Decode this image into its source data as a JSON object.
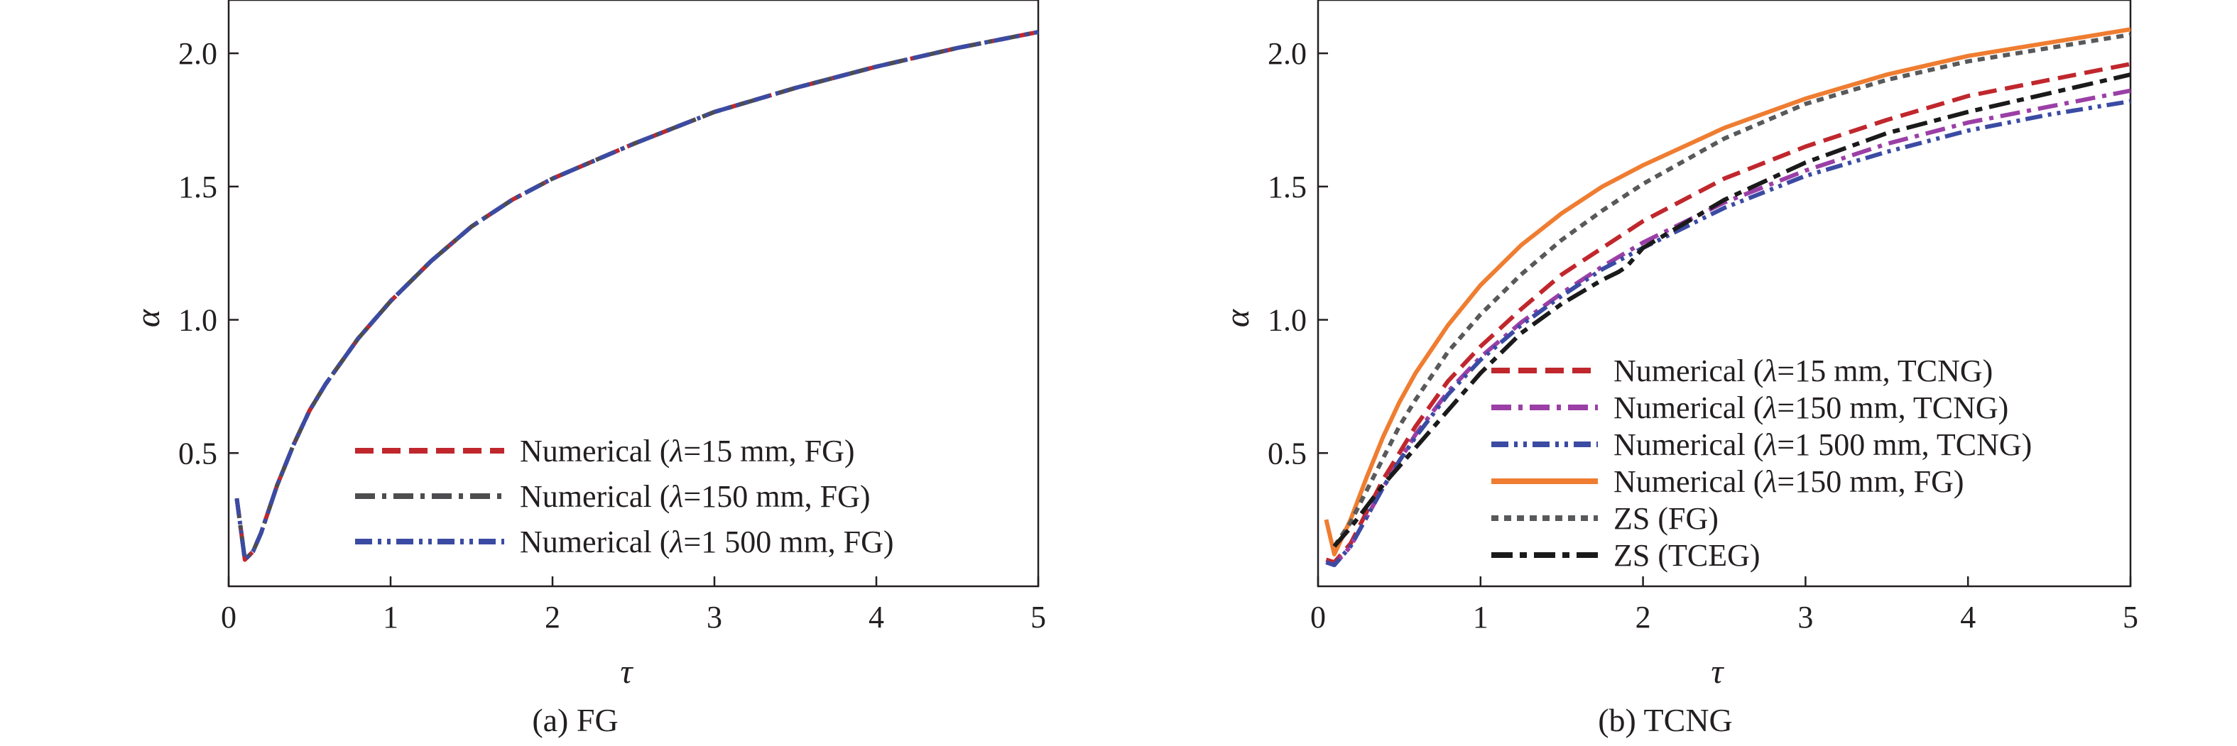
{
  "chart_data": [
    {
      "type": "line",
      "caption": "(a) FG",
      "xlabel": "τ",
      "ylabel": "α",
      "xlim": [
        0,
        5
      ],
      "ylim": [
        0,
        2.2
      ],
      "x_ticks": [
        "0",
        "1",
        "2",
        "3",
        "4",
        "5"
      ],
      "y_ticks": [
        "0.5",
        "1.0",
        "1.5",
        "2.0"
      ],
      "legend_position": "bottom-right",
      "series": [
        {
          "name": "Numerical (λ=15 mm, FG)",
          "color": "#c0272d",
          "style": "dashed",
          "x": [
            0.05,
            0.1,
            0.15,
            0.2,
            0.3,
            0.4,
            0.5,
            0.6,
            0.8,
            1.0,
            1.25,
            1.5,
            1.75,
            2.0,
            2.5,
            3.0,
            3.5,
            4.0,
            4.5,
            5.0
          ],
          "y": [
            0.33,
            0.1,
            0.13,
            0.2,
            0.38,
            0.53,
            0.66,
            0.76,
            0.93,
            1.07,
            1.22,
            1.35,
            1.45,
            1.53,
            1.66,
            1.78,
            1.87,
            1.95,
            2.02,
            2.08
          ]
        },
        {
          "name": "Numerical (λ=150 mm, FG)",
          "color": "#4d4d4f",
          "style": "dashdot",
          "x": [
            0.05,
            0.1,
            0.15,
            0.2,
            0.3,
            0.4,
            0.5,
            0.6,
            0.8,
            1.0,
            1.25,
            1.5,
            1.75,
            2.0,
            2.5,
            3.0,
            3.5,
            4.0,
            4.5,
            5.0
          ],
          "y": [
            0.33,
            0.1,
            0.13,
            0.2,
            0.38,
            0.53,
            0.66,
            0.76,
            0.93,
            1.07,
            1.22,
            1.35,
            1.45,
            1.53,
            1.66,
            1.78,
            1.87,
            1.95,
            2.02,
            2.08
          ]
        },
        {
          "name": "Numerical (λ=1 500 mm, FG)",
          "color": "#3b4ba3",
          "style": "dashdotdot",
          "x": [
            0.05,
            0.1,
            0.15,
            0.2,
            0.3,
            0.4,
            0.5,
            0.6,
            0.8,
            1.0,
            1.25,
            1.5,
            1.75,
            2.0,
            2.5,
            3.0,
            3.5,
            4.0,
            4.5,
            5.0
          ],
          "y": [
            0.33,
            0.1,
            0.13,
            0.2,
            0.38,
            0.53,
            0.66,
            0.76,
            0.93,
            1.07,
            1.22,
            1.35,
            1.45,
            1.53,
            1.66,
            1.78,
            1.87,
            1.95,
            2.02,
            2.08
          ]
        }
      ]
    },
    {
      "type": "line",
      "caption": "(b) TCNG",
      "xlabel": "τ",
      "ylabel": "α",
      "xlim": [
        0,
        5
      ],
      "ylim": [
        0,
        2.2
      ],
      "x_ticks": [
        "0",
        "1",
        "2",
        "3",
        "4",
        "5"
      ],
      "y_ticks": [
        "0.5",
        "1.0",
        "1.5",
        "2.0"
      ],
      "legend_position": "bottom-center",
      "series": [
        {
          "name": "Numerical (λ=15 mm, TCNG)",
          "color": "#c0272d",
          "style": "dashed",
          "x": [
            0.05,
            0.1,
            0.2,
            0.3,
            0.4,
            0.5,
            0.6,
            0.8,
            1.0,
            1.25,
            1.5,
            1.75,
            2.0,
            2.5,
            3.0,
            3.5,
            4.0,
            4.5,
            5.0
          ],
          "y": [
            0.1,
            0.09,
            0.16,
            0.28,
            0.4,
            0.5,
            0.6,
            0.77,
            0.9,
            1.04,
            1.17,
            1.27,
            1.37,
            1.53,
            1.65,
            1.75,
            1.84,
            1.9,
            1.96
          ]
        },
        {
          "name": "Numerical (λ=150 mm, TCNG)",
          "color": "#9b3fa6",
          "style": "dashdot",
          "x": [
            0.05,
            0.1,
            0.2,
            0.3,
            0.4,
            0.5,
            0.6,
            0.8,
            1.0,
            1.25,
            1.5,
            1.75,
            2.0,
            2.5,
            3.0,
            3.5,
            4.0,
            4.5,
            5.0
          ],
          "y": [
            0.09,
            0.08,
            0.15,
            0.26,
            0.37,
            0.47,
            0.57,
            0.73,
            0.86,
            0.99,
            1.1,
            1.2,
            1.29,
            1.44,
            1.56,
            1.66,
            1.74,
            1.8,
            1.86
          ]
        },
        {
          "name": "Numerical (λ=1 500 mm, TCNG)",
          "color": "#3b4ba3",
          "style": "dashdotdot",
          "x": [
            0.05,
            0.1,
            0.2,
            0.3,
            0.4,
            0.5,
            0.6,
            0.8,
            1.0,
            1.25,
            1.5,
            1.75,
            2.0,
            2.5,
            3.0,
            3.5,
            4.0,
            4.5,
            5.0
          ],
          "y": [
            0.09,
            0.08,
            0.15,
            0.26,
            0.37,
            0.47,
            0.56,
            0.72,
            0.85,
            0.98,
            1.09,
            1.19,
            1.27,
            1.42,
            1.54,
            1.63,
            1.71,
            1.77,
            1.82
          ]
        },
        {
          "name": "Numerical (λ=150 mm, FG)",
          "color": "#ef7d31",
          "style": "solid",
          "x": [
            0.05,
            0.1,
            0.2,
            0.3,
            0.4,
            0.5,
            0.6,
            0.8,
            1.0,
            1.25,
            1.5,
            1.75,
            2.0,
            2.5,
            3.0,
            3.5,
            4.0,
            4.5,
            5.0
          ],
          "y": [
            0.25,
            0.12,
            0.25,
            0.41,
            0.56,
            0.69,
            0.8,
            0.98,
            1.13,
            1.28,
            1.4,
            1.5,
            1.58,
            1.72,
            1.83,
            1.92,
            1.99,
            2.04,
            2.09
          ]
        },
        {
          "name": "ZS (FG)",
          "color": "#58595b",
          "style": "dotted",
          "x": [
            0.1,
            0.2,
            0.3,
            0.4,
            0.5,
            0.6,
            0.8,
            1.0,
            1.25,
            1.5,
            1.75,
            2.0,
            2.5,
            3.0,
            3.5,
            4.0,
            4.5,
            5.0
          ],
          "y": [
            0.15,
            0.24,
            0.36,
            0.48,
            0.6,
            0.7,
            0.88,
            1.02,
            1.17,
            1.3,
            1.41,
            1.51,
            1.68,
            1.81,
            1.9,
            1.97,
            2.02,
            2.07
          ]
        },
        {
          "name": "ZS (TCEG)",
          "color": "#1a1a1a",
          "style": "longdash",
          "x": [
            0.1,
            0.2,
            0.3,
            0.4,
            0.5,
            0.6,
            0.8,
            1.0,
            1.25,
            1.5,
            1.75,
            1.85,
            1.9,
            2.0,
            2.5,
            3.0,
            3.5,
            4.0,
            4.5,
            5.0
          ],
          "y": [
            0.15,
            0.22,
            0.3,
            0.38,
            0.45,
            0.52,
            0.66,
            0.8,
            0.95,
            1.06,
            1.15,
            1.18,
            1.2,
            1.27,
            1.45,
            1.59,
            1.7,
            1.78,
            1.85,
            1.92
          ]
        }
      ]
    }
  ]
}
